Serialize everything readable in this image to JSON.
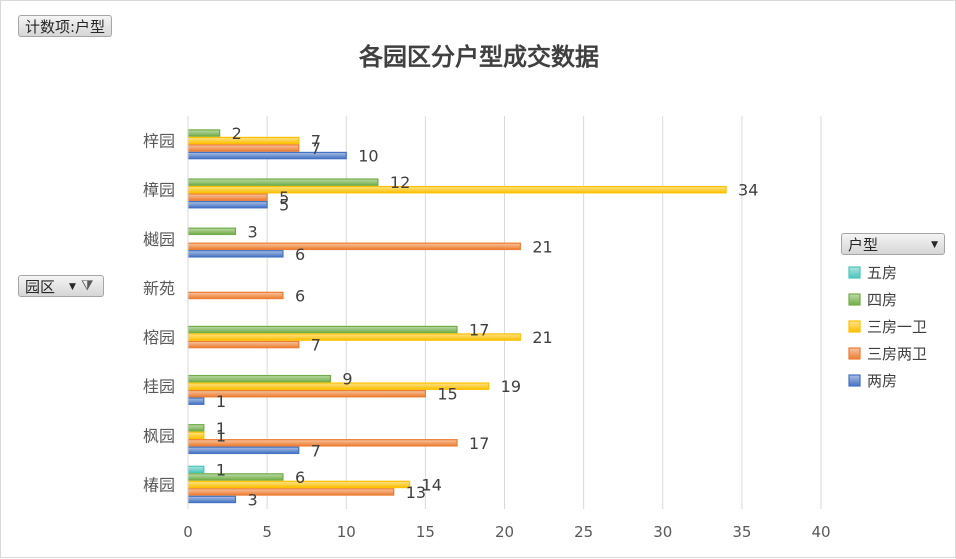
{
  "pivot": {
    "value_field_label": "计数项:户型",
    "row_field_label": "园区",
    "legend_field_label": "户型"
  },
  "colors": {
    "五房": "#4bc4bc",
    "四房": "#70ad47",
    "三房一卫": "#ffc000",
    "三房两卫": "#ed7d31",
    "两房": "#4472c4"
  },
  "chart_data": {
    "type": "bar",
    "orientation": "horizontal",
    "title": "各园区分户型成交数据",
    "categories": [
      "梓园",
      "樟园",
      "樾园",
      "新苑",
      "榕园",
      "桂园",
      "枫园",
      "椿园"
    ],
    "series": [
      {
        "name": "五房",
        "values": [
          null,
          null,
          null,
          null,
          null,
          null,
          null,
          1
        ]
      },
      {
        "name": "四房",
        "values": [
          2,
          12,
          3,
          null,
          17,
          9,
          1,
          6
        ]
      },
      {
        "name": "三房一卫",
        "values": [
          7,
          34,
          null,
          null,
          21,
          19,
          1,
          14
        ]
      },
      {
        "name": "三房两卫",
        "values": [
          7,
          5,
          21,
          6,
          7,
          15,
          17,
          13
        ]
      },
      {
        "name": "两房",
        "values": [
          10,
          5,
          6,
          null,
          null,
          1,
          7,
          3
        ]
      }
    ],
    "xlim": [
      0,
      40
    ],
    "x_ticks": [
      0,
      5,
      10,
      15,
      20,
      25,
      30,
      35,
      40
    ],
    "grid": true,
    "legend_position": "right",
    "legend_order": [
      "五房",
      "四房",
      "三房一卫",
      "三房两卫",
      "两房"
    ],
    "data_labels": true
  }
}
